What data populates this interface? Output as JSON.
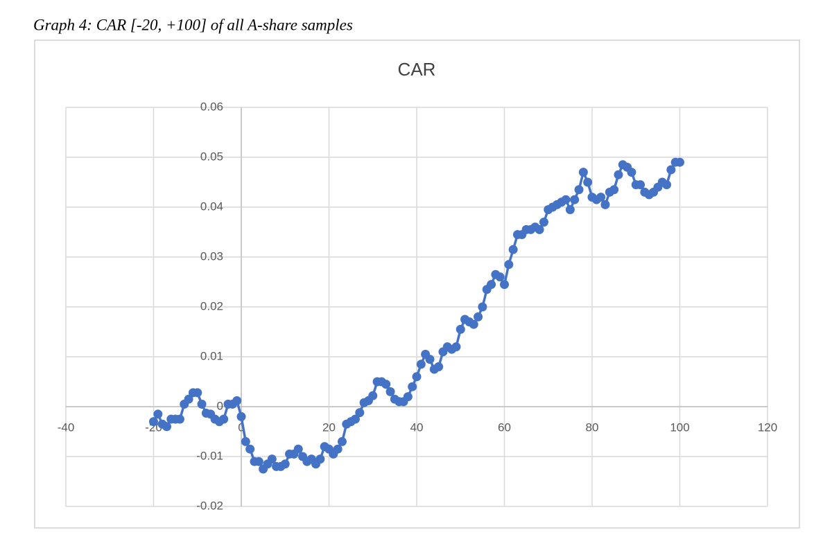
{
  "caption": "Graph 4: CAR [-20, +100] of all A-share samples",
  "chart_data": {
    "type": "scatter",
    "title": "CAR",
    "color": "#4472c4",
    "lines": true,
    "grid": true,
    "x": [
      -20,
      -19,
      -18,
      -17,
      -16,
      -15,
      -14,
      -13,
      -12,
      -11,
      -10,
      -9,
      -8,
      -7,
      -6,
      -5,
      -4,
      -3,
      -2,
      -1,
      0,
      1,
      2,
      3,
      4,
      5,
      6,
      7,
      8,
      9,
      10,
      11,
      12,
      13,
      14,
      15,
      16,
      17,
      18,
      19,
      20,
      21,
      22,
      23,
      24,
      25,
      26,
      27,
      28,
      29,
      30,
      31,
      32,
      33,
      34,
      35,
      36,
      37,
      38,
      39,
      40,
      41,
      42,
      43,
      44,
      45,
      46,
      47,
      48,
      49,
      50,
      51,
      52,
      53,
      54,
      55,
      56,
      57,
      58,
      59,
      60,
      61,
      62,
      63,
      64,
      65,
      66,
      67,
      68,
      69,
      70,
      71,
      72,
      73,
      74,
      75,
      76,
      77,
      78,
      79,
      80,
      81,
      82,
      83,
      84,
      85,
      86,
      87,
      88,
      89,
      90,
      91,
      92,
      93,
      94,
      95,
      96,
      97,
      98,
      99,
      100
    ],
    "values": [
      -0.003,
      -0.0015,
      -0.0035,
      -0.004,
      -0.0025,
      -0.0025,
      -0.0025,
      0.0005,
      0.0015,
      0.0028,
      0.0028,
      0.0005,
      -0.0013,
      -0.0015,
      -0.0025,
      -0.003,
      -0.0025,
      0.0005,
      0.0005,
      0.0012,
      -0.002,
      -0.007,
      -0.0085,
      -0.011,
      -0.011,
      -0.0125,
      -0.0115,
      -0.0105,
      -0.012,
      -0.012,
      -0.0115,
      -0.0095,
      -0.0095,
      -0.0085,
      -0.01,
      -0.011,
      -0.0105,
      -0.0115,
      -0.0105,
      -0.008,
      -0.0085,
      -0.0095,
      -0.0085,
      -0.007,
      -0.0035,
      -0.003,
      -0.0025,
      -0.0012,
      0.0008,
      0.0012,
      0.0022,
      0.005,
      0.005,
      0.0045,
      0.003,
      0.0015,
      0.001,
      0.001,
      0.002,
      0.004,
      0.006,
      0.0085,
      0.0105,
      0.0095,
      0.0075,
      0.008,
      0.011,
      0.012,
      0.0115,
      0.012,
      0.0155,
      0.0175,
      0.017,
      0.0165,
      0.018,
      0.02,
      0.0235,
      0.0245,
      0.0265,
      0.026,
      0.0245,
      0.0285,
      0.0315,
      0.0345,
      0.0345,
      0.0355,
      0.0355,
      0.036,
      0.0355,
      0.037,
      0.0395,
      0.04,
      0.0405,
      0.041,
      0.0415,
      0.0395,
      0.0415,
      0.0435,
      0.047,
      0.045,
      0.042,
      0.0415,
      0.042,
      0.0405,
      0.043,
      0.0435,
      0.0465,
      0.0485,
      0.048,
      0.047,
      0.0445,
      0.0445,
      0.043,
      0.0425,
      0.043,
      0.044,
      0.045,
      0.0445,
      0.0475,
      0.049,
      0.049
    ],
    "xlim": [
      -40,
      120
    ],
    "xticks": [
      -40,
      -20,
      0,
      20,
      40,
      60,
      80,
      100,
      120
    ],
    "ylim": [
      -0.02,
      0.06
    ],
    "yticks": [
      -0.02,
      -0.01,
      0,
      0.01,
      0.02,
      0.03,
      0.04,
      0.05,
      0.06
    ]
  }
}
